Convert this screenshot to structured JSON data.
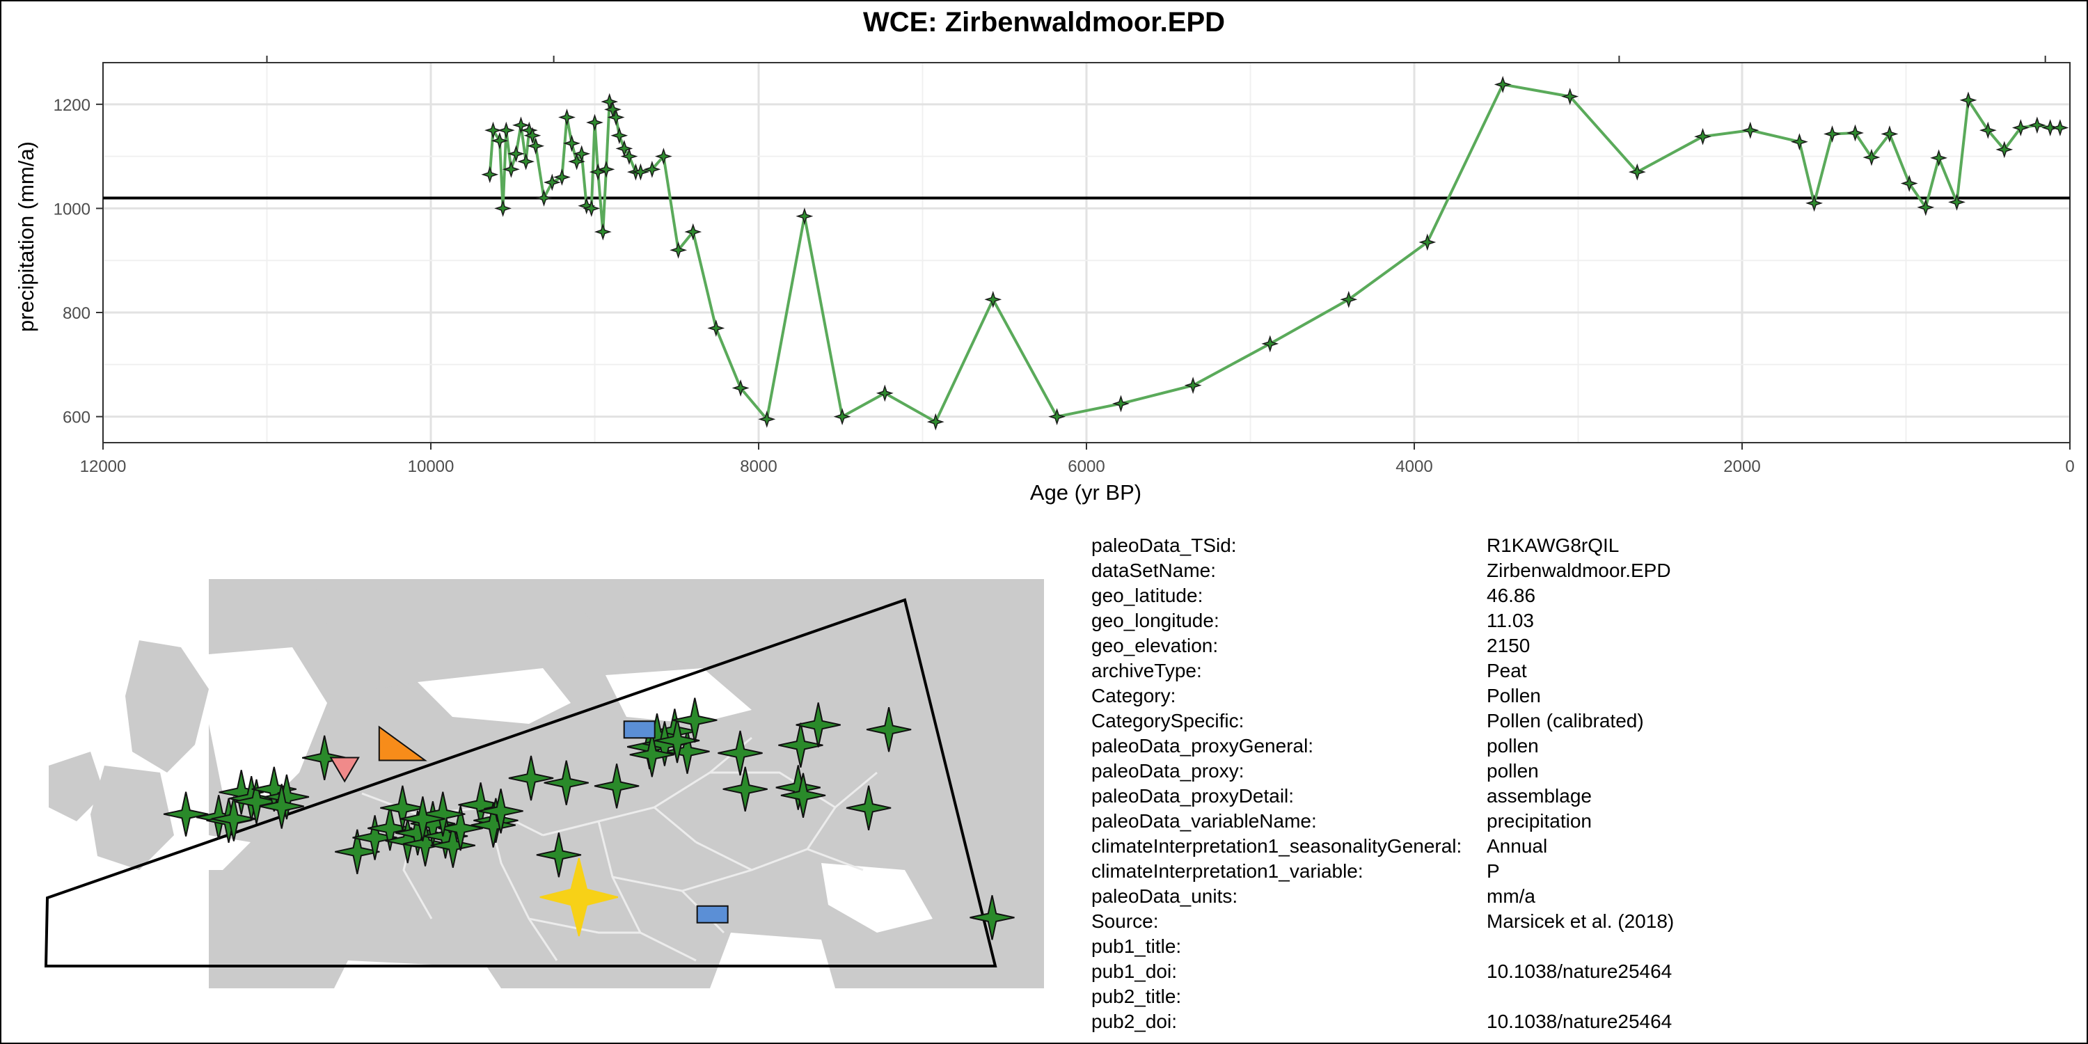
{
  "title": "WCE: Zirbenwaldmoor.EPD",
  "colors": {
    "line": "#5aaa5a",
    "marker": "#2e8b2e",
    "reference_line": "#000000",
    "map_land": "#cbcbcb",
    "map_border": "#ececec",
    "site_green": "#2a8a2a",
    "site_yellow": "#f7d117",
    "site_orange": "#f78c1a",
    "site_pink": "#f08a8a",
    "site_blue": "#5b8fd6"
  },
  "chart_data": {
    "type": "line",
    "title": "WCE: Zirbenwaldmoor.EPD",
    "xlabel": "Age (yr BP)",
    "ylabel": "precipitation (mm/a)",
    "xlim": [
      12000,
      0
    ],
    "ylim": [
      550,
      1280
    ],
    "x_reversed": true,
    "x_ticks": [
      "12000",
      "10000",
      "8000",
      "6000",
      "4000",
      "2000",
      "0"
    ],
    "y_ticks": [
      "600",
      "800",
      "1000",
      "1200"
    ],
    "grid": true,
    "reference_line_y": 1020,
    "series": [
      {
        "x": [
          9640,
          9620,
          9580,
          9560,
          9540,
          9510,
          9480,
          9450,
          9420,
          9400,
          9380,
          9360,
          9310,
          9260,
          9200,
          9170,
          9140,
          9110,
          9080,
          9050,
          9020,
          9000,
          8980,
          8950,
          8930,
          8910,
          8890,
          8870,
          8850,
          8820,
          8790,
          8750,
          8720,
          8650,
          8580,
          8490,
          8400,
          8260,
          8110,
          7950,
          7720,
          7490,
          7230,
          6920,
          6570,
          6180,
          5790,
          5350,
          4880,
          4400,
          3920,
          3460,
          3050,
          2640,
          2240,
          1950,
          1650,
          1560,
          1450,
          1310,
          1210,
          1100,
          980,
          880,
          800,
          690,
          620,
          500,
          400,
          300,
          200,
          120,
          60
        ],
        "y": [
          1065,
          1150,
          1130,
          1000,
          1150,
          1075,
          1105,
          1160,
          1090,
          1150,
          1140,
          1120,
          1020,
          1050,
          1060,
          1175,
          1125,
          1090,
          1105,
          1005,
          1000,
          1165,
          1070,
          955,
          1075,
          1205,
          1190,
          1175,
          1140,
          1115,
          1100,
          1070,
          1070,
          1075,
          1100,
          920,
          955,
          770,
          655,
          595,
          985,
          600,
          645,
          590,
          825,
          600,
          625,
          660,
          740,
          825,
          935,
          1238,
          1215,
          1070,
          1138,
          1150,
          1128,
          1010,
          1143,
          1145,
          1098,
          1143,
          1048,
          1002,
          1097,
          1012,
          1208,
          1150,
          1113,
          1155,
          1160,
          1155,
          1155
        ]
      }
    ]
  },
  "map": {
    "sites": [
      {
        "lon": -4.5,
        "lat": 52.2,
        "shape": "star",
        "color": "green"
      },
      {
        "lon": -3.2,
        "lat": 52.0,
        "shape": "star",
        "color": "green"
      },
      {
        "lon": -2.8,
        "lat": 51.8,
        "shape": "star",
        "color": "green"
      },
      {
        "lon": -2.6,
        "lat": 51.9,
        "shape": "star",
        "color": "green"
      },
      {
        "lon": -2.3,
        "lat": 53.6,
        "shape": "star",
        "color": "green"
      },
      {
        "lon": -1.9,
        "lat": 53.2,
        "shape": "star",
        "color": "green"
      },
      {
        "lon": -1.7,
        "lat": 53.0,
        "shape": "star",
        "color": "green"
      },
      {
        "lon": -1.0,
        "lat": 53.8,
        "shape": "star",
        "color": "green"
      },
      {
        "lon": -0.5,
        "lat": 53.3,
        "shape": "star",
        "color": "green"
      },
      {
        "lon": -0.7,
        "lat": 52.7,
        "shape": "star",
        "color": "green"
      },
      {
        "lon": 2.3,
        "lat": 49.8,
        "shape": "star",
        "color": "green"
      },
      {
        "lon": 3.0,
        "lat": 50.7,
        "shape": "star",
        "color": "green"
      },
      {
        "lon": 3.6,
        "lat": 51.3,
        "shape": "star",
        "color": "green"
      },
      {
        "lon": 4.3,
        "lat": 50.5,
        "shape": "star",
        "color": "green"
      },
      {
        "lon": 4.7,
        "lat": 51.0,
        "shape": "star",
        "color": "green"
      },
      {
        "lon": 5.0,
        "lat": 50.3,
        "shape": "star",
        "color": "green"
      },
      {
        "lon": 5.3,
        "lat": 51.6,
        "shape": "star",
        "color": "green"
      },
      {
        "lon": 5.8,
        "lat": 50.8,
        "shape": "star",
        "color": "green"
      },
      {
        "lon": 6.1,
        "lat": 50.2,
        "shape": "star",
        "color": "green"
      },
      {
        "lon": 6.4,
        "lat": 51.3,
        "shape": "star",
        "color": "green"
      },
      {
        "lon": 4.1,
        "lat": 52.6,
        "shape": "star",
        "color": "green"
      },
      {
        "lon": 5.7,
        "lat": 52.2,
        "shape": "star",
        "color": "green"
      },
      {
        "lon": 4.9,
        "lat": 51.9,
        "shape": "star",
        "color": "green"
      },
      {
        "lon": 7.2,
        "lat": 52.8,
        "shape": "star",
        "color": "green"
      },
      {
        "lon": 1.0,
        "lat": 55.8,
        "shape": "star",
        "color": "green"
      },
      {
        "lon": 7.8,
        "lat": 51.8,
        "shape": "star",
        "color": "green"
      },
      {
        "lon": 9.2,
        "lat": 54.5,
        "shape": "star",
        "color": "green"
      },
      {
        "lon": 10.6,
        "lat": 54.2,
        "shape": "star",
        "color": "green"
      },
      {
        "lon": 12.6,
        "lat": 54.0,
        "shape": "star",
        "color": "green"
      },
      {
        "lon": 15.4,
        "lat": 56.2,
        "shape": "star",
        "color": "green"
      },
      {
        "lon": 14.9,
        "lat": 57.5,
        "shape": "star",
        "color": "green"
      },
      {
        "lon": 14.2,
        "lat": 57.2,
        "shape": "star",
        "color": "green"
      },
      {
        "lon": 13.9,
        "lat": 56.5,
        "shape": "star",
        "color": "green"
      },
      {
        "lon": 14.5,
        "lat": 56.7,
        "shape": "star",
        "color": "green"
      },
      {
        "lon": 14.0,
        "lat": 56.0,
        "shape": "star",
        "color": "green"
      },
      {
        "lon": 15.0,
        "lat": 56.9,
        "shape": "star",
        "color": "green"
      },
      {
        "lon": 15.7,
        "lat": 58.2,
        "shape": "star",
        "color": "green"
      },
      {
        "lon": 17.5,
        "lat": 56.1,
        "shape": "star",
        "color": "green"
      },
      {
        "lon": 17.7,
        "lat": 53.8,
        "shape": "star",
        "color": "green"
      },
      {
        "lon": 19.8,
        "lat": 53.9,
        "shape": "star",
        "color": "green"
      },
      {
        "lon": 20.0,
        "lat": 53.4,
        "shape": "star",
        "color": "green"
      },
      {
        "lon": 19.9,
        "lat": 56.6,
        "shape": "star",
        "color": "green"
      },
      {
        "lon": 20.6,
        "lat": 57.9,
        "shape": "star",
        "color": "green"
      },
      {
        "lon": 23.4,
        "lat": 57.6,
        "shape": "star",
        "color": "green"
      },
      {
        "lon": 22.6,
        "lat": 52.6,
        "shape": "star",
        "color": "green"
      },
      {
        "lon": 27.5,
        "lat": 45.6,
        "shape": "star",
        "color": "green"
      },
      {
        "lon": 7.7,
        "lat": 51.5,
        "shape": "star",
        "color": "green"
      },
      {
        "lon": 8.0,
        "lat": 52.4,
        "shape": "star",
        "color": "green"
      },
      {
        "lon": 10.3,
        "lat": 49.6,
        "shape": "star",
        "color": "green"
      },
      {
        "lon": 11.1,
        "lat": 46.9,
        "shape": "star-big",
        "color": "yellow"
      },
      {
        "lon": 4.0,
        "lat": 56.7,
        "shape": "triangle",
        "color": "orange"
      },
      {
        "lon": 1.8,
        "lat": 55.1,
        "shape": "triangle-down",
        "color": "pink"
      },
      {
        "lon": 13.5,
        "lat": 57.6,
        "shape": "rect",
        "color": "blue"
      },
      {
        "lon": 16.4,
        "lat": 45.8,
        "shape": "rect",
        "color": "blue"
      }
    ]
  },
  "info": [
    {
      "key": "paleoData_TSid:",
      "value": "R1KAWG8rQIL"
    },
    {
      "key": "dataSetName:",
      "value": "Zirbenwaldmoor.EPD"
    },
    {
      "key": "geo_latitude:",
      "value": "46.86"
    },
    {
      "key": "geo_longitude:",
      "value": "11.03"
    },
    {
      "key": "geo_elevation:",
      "value": "2150"
    },
    {
      "key": "archiveType:",
      "value": "Peat"
    },
    {
      "key": "Category:",
      "value": "Pollen"
    },
    {
      "key": "CategorySpecific:",
      "value": "Pollen (calibrated)"
    },
    {
      "key": "paleoData_proxyGeneral:",
      "value": "pollen"
    },
    {
      "key": "paleoData_proxy:",
      "value": "pollen"
    },
    {
      "key": "paleoData_proxyDetail:",
      "value": "assemblage"
    },
    {
      "key": "paleoData_variableName:",
      "value": "precipitation"
    },
    {
      "key": "climateInterpretation1_seasonalityGeneral:",
      "value": "Annual"
    },
    {
      "key": "climateInterpretation1_variable:",
      "value": "P"
    },
    {
      "key": "paleoData_units:",
      "value": "mm/a"
    },
    {
      "key": "Source:",
      "value": "Marsicek et al. (2018)"
    },
    {
      "key": "pub1_title:",
      "value": ""
    },
    {
      "key": "pub1_doi:",
      "value": "10.1038/nature25464"
    },
    {
      "key": "pub2_title:",
      "value": ""
    },
    {
      "key": "pub2_doi:",
      "value": "10.1038/nature25464"
    }
  ]
}
